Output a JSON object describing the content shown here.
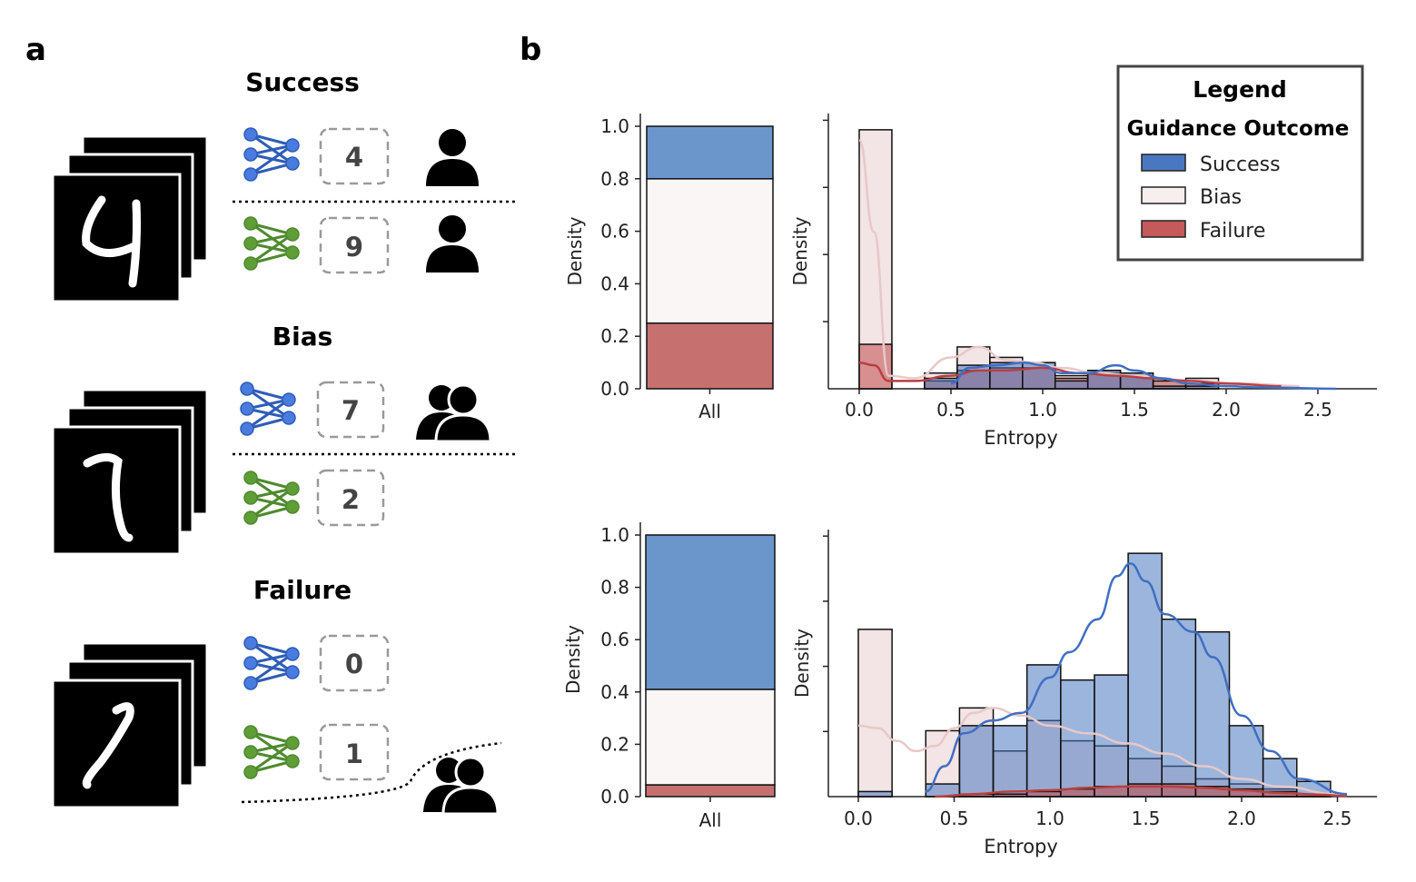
{
  "panel_a": {
    "label": "a",
    "groups": [
      {
        "title": "Success",
        "digit_shape": "4",
        "blue_pred": "4",
        "green_pred": "9",
        "blue_human": "single-person-icon",
        "green_human": "single-person-icon"
      },
      {
        "title": "Bias",
        "digit_shape": "7",
        "blue_pred": "7",
        "green_pred": "2",
        "blue_human": "two-people-icon",
        "green_human": "none"
      },
      {
        "title": "Failure",
        "digit_shape": "1",
        "blue_pred": "0",
        "green_pred": "1",
        "blue_human": "none",
        "green_human": "two-people-icon"
      }
    ],
    "colors": {
      "blue_net": "#2e5db8",
      "green_net": "#4e8a2e",
      "box_border": "#999999"
    }
  },
  "panel_b": {
    "label": "b",
    "legend": {
      "title": "Legend",
      "subtitle": "Guidance Outcome",
      "items": [
        {
          "label": "Success",
          "color": "#4a78c0"
        },
        {
          "label": "Bias",
          "color": "#f7eeee"
        },
        {
          "label": "Failure",
          "color": "#c45a5a"
        }
      ]
    }
  },
  "chart_data": [
    {
      "type": "bar",
      "stacked": true,
      "row": "top",
      "categories": [
        "All"
      ],
      "series": [
        {
          "name": "Failure",
          "values": [
            0.25
          ]
        },
        {
          "name": "Bias",
          "values": [
            0.55
          ]
        },
        {
          "name": "Success",
          "values": [
            0.2
          ]
        }
      ],
      "ylabel": "Density",
      "ylim": [
        0,
        1.0
      ],
      "yticks": [
        "0.0",
        "0.2",
        "0.4",
        "0.6",
        "0.8",
        "1.0"
      ]
    },
    {
      "type": "histogram",
      "row": "top",
      "xlabel": "Entropy",
      "ylabel": "Density",
      "xlim": [
        -0.07,
        2.8
      ],
      "ylim": [
        0,
        1.0
      ],
      "xticks": [
        "0.0",
        "0.5",
        "1.0",
        "1.5",
        "2.0",
        "2.5"
      ],
      "bin_edges": [
        0.0,
        0.178,
        0.356,
        0.534,
        0.712,
        0.89,
        1.068,
        1.246,
        1.424,
        1.602,
        1.78,
        1.958
      ],
      "series": [
        {
          "name": "Bias",
          "values": [
            0.99,
            0.0,
            0.06,
            0.16,
            0.12,
            0.1,
            0.05,
            0.07,
            0.05,
            0.03,
            0.04
          ]
        },
        {
          "name": "Failure",
          "values": [
            0.17,
            0.0,
            0.03,
            0.07,
            0.08,
            0.08,
            0.04,
            0.06,
            0.05,
            0.03,
            0.02
          ]
        },
        {
          "name": "Success",
          "values": [
            0.0,
            0.0,
            0.04,
            0.09,
            0.1,
            0.1,
            0.03,
            0.07,
            0.06,
            0.01,
            0.01
          ]
        }
      ],
      "kde": [
        {
          "name": "Bias",
          "x": [
            0.0,
            0.08,
            0.16,
            0.3,
            0.5,
            0.65,
            0.8,
            0.95,
            1.1,
            1.3,
            1.5,
            1.8,
            2.1,
            2.4
          ],
          "y": [
            0.95,
            0.6,
            0.05,
            0.04,
            0.12,
            0.16,
            0.11,
            0.1,
            0.08,
            0.06,
            0.05,
            0.03,
            0.02,
            0.01
          ]
        },
        {
          "name": "Failure",
          "x": [
            0.0,
            0.08,
            0.16,
            0.3,
            0.5,
            0.65,
            0.8,
            1.0,
            1.2,
            1.4,
            1.6,
            1.8,
            2.0,
            2.3
          ],
          "y": [
            0.1,
            0.09,
            0.03,
            0.03,
            0.05,
            0.07,
            0.07,
            0.08,
            0.06,
            0.05,
            0.04,
            0.03,
            0.02,
            0.01
          ]
        },
        {
          "name": "Success",
          "x": [
            0.5,
            0.6,
            0.75,
            0.9,
            1.0,
            1.1,
            1.25,
            1.4,
            1.5,
            1.65,
            1.8,
            2.0,
            2.2,
            2.6
          ],
          "y": [
            0.02,
            0.08,
            0.09,
            0.1,
            0.09,
            0.06,
            0.06,
            0.09,
            0.07,
            0.04,
            0.02,
            0.01,
            0.005,
            0.0
          ]
        }
      ]
    },
    {
      "type": "bar",
      "stacked": true,
      "row": "bottom",
      "categories": [
        "All"
      ],
      "series": [
        {
          "name": "Failure",
          "values": [
            0.045
          ]
        },
        {
          "name": "Bias",
          "values": [
            0.365
          ]
        },
        {
          "name": "Success",
          "values": [
            0.59
          ]
        }
      ],
      "ylabel": "Density",
      "ylim": [
        0,
        1.0
      ],
      "yticks": [
        "0.0",
        "0.2",
        "0.4",
        "0.6",
        "0.8",
        "1.0"
      ]
    },
    {
      "type": "histogram",
      "row": "bottom",
      "xlabel": "Entropy",
      "ylabel": "Density",
      "xlim": [
        -0.07,
        2.67
      ],
      "ylim": [
        0,
        1.0
      ],
      "xticks": [
        "0.0",
        "0.5",
        "1.0",
        "1.5",
        "2.0",
        "2.5"
      ],
      "bin_edges": [
        0.0,
        0.176,
        0.352,
        0.528,
        0.704,
        0.88,
        1.056,
        1.232,
        1.408,
        1.584,
        1.76,
        1.936,
        2.112,
        2.288,
        2.464
      ],
      "series": [
        {
          "name": "Bias",
          "values": [
            0.66,
            0.0,
            0.26,
            0.35,
            0.18,
            0.3,
            0.22,
            0.2,
            0.15,
            0.12,
            0.07,
            0.05,
            0.03,
            0.01
          ]
        },
        {
          "name": "Success",
          "values": [
            0.02,
            0.0,
            0.05,
            0.28,
            0.28,
            0.52,
            0.46,
            0.48,
            0.96,
            0.7,
            0.65,
            0.28,
            0.15,
            0.06
          ]
        },
        {
          "name": "Failure",
          "values": [
            0.0,
            0.0,
            0.0,
            0.01,
            0.01,
            0.02,
            0.03,
            0.04,
            0.05,
            0.05,
            0.04,
            0.03,
            0.02,
            0.01
          ]
        }
      ],
      "kde": [
        {
          "name": "Bias",
          "x": [
            0.0,
            0.1,
            0.2,
            0.3,
            0.4,
            0.5,
            0.6,
            0.7,
            0.85,
            1.0,
            1.2,
            1.4,
            1.6,
            1.8,
            2.0,
            2.2,
            2.5
          ],
          "y": [
            0.28,
            0.27,
            0.22,
            0.18,
            0.2,
            0.27,
            0.33,
            0.35,
            0.32,
            0.28,
            0.25,
            0.21,
            0.17,
            0.12,
            0.07,
            0.04,
            0.01
          ]
        },
        {
          "name": "Success",
          "x": [
            0.35,
            0.45,
            0.55,
            0.7,
            0.85,
            1.0,
            1.1,
            1.25,
            1.35,
            1.42,
            1.5,
            1.6,
            1.75,
            1.85,
            2.0,
            2.15,
            2.3,
            2.55
          ],
          "y": [
            0.02,
            0.12,
            0.25,
            0.3,
            0.33,
            0.47,
            0.57,
            0.7,
            0.87,
            0.92,
            0.85,
            0.72,
            0.65,
            0.55,
            0.32,
            0.18,
            0.07,
            0.01
          ]
        },
        {
          "name": "Failure",
          "x": [
            0.4,
            0.6,
            0.8,
            1.0,
            1.2,
            1.4,
            1.6,
            1.8,
            2.0,
            2.2,
            2.4,
            2.55
          ],
          "y": [
            0.0,
            0.01,
            0.02,
            0.025,
            0.035,
            0.04,
            0.04,
            0.035,
            0.025,
            0.015,
            0.008,
            0.002
          ]
        }
      ]
    }
  ]
}
